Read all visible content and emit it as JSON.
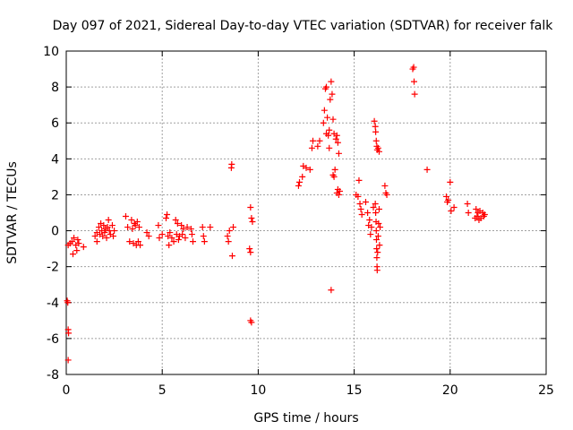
{
  "chart_data": {
    "type": "scatter",
    "title": "Day 097 of 2021, Sidereal Day-to-day VTEC variation (SDTVAR) for receiver falk",
    "xlabel": "GPS time / hours",
    "ylabel": "SDTVAR / TECUs",
    "xlim": [
      0,
      25
    ],
    "ylim": [
      -8,
      10
    ],
    "xticks": [
      0,
      5,
      10,
      15,
      20,
      25
    ],
    "yticks": [
      -8,
      -6,
      -4,
      -2,
      0,
      2,
      4,
      6,
      8,
      10
    ],
    "grid": true,
    "marker": "+",
    "series": [
      {
        "name": "SDTVAR",
        "color": "#ff0000",
        "points": [
          [
            0.05,
            -3.9
          ],
          [
            0.08,
            -4.0
          ],
          [
            0.1,
            -5.5
          ],
          [
            0.12,
            -5.7
          ],
          [
            0.1,
            -7.2
          ],
          [
            0.1,
            -0.8
          ],
          [
            0.2,
            -0.7
          ],
          [
            0.3,
            -0.6
          ],
          [
            0.35,
            -1.3
          ],
          [
            0.4,
            -0.4
          ],
          [
            0.5,
            -0.8
          ],
          [
            0.55,
            -1.1
          ],
          [
            0.6,
            -0.5
          ],
          [
            0.65,
            -0.7
          ],
          [
            0.9,
            -0.9
          ],
          [
            1.5,
            -0.3
          ],
          [
            1.6,
            -0.1
          ],
          [
            1.6,
            -0.6
          ],
          [
            1.7,
            0.2
          ],
          [
            1.75,
            -0.2
          ],
          [
            1.8,
            0.4
          ],
          [
            1.85,
            0.0
          ],
          [
            1.9,
            -0.3
          ],
          [
            1.95,
            0.3
          ],
          [
            2.0,
            -0.1
          ],
          [
            2.05,
            0.1
          ],
          [
            2.1,
            -0.4
          ],
          [
            2.15,
            0.2
          ],
          [
            2.2,
            0.6
          ],
          [
            2.25,
            0.0
          ],
          [
            2.3,
            -0.2
          ],
          [
            2.4,
            0.3
          ],
          [
            2.45,
            -0.3
          ],
          [
            2.5,
            0.0
          ],
          [
            3.1,
            0.8
          ],
          [
            3.2,
            0.2
          ],
          [
            3.3,
            -0.6
          ],
          [
            3.4,
            0.6
          ],
          [
            3.45,
            0.1
          ],
          [
            3.5,
            -0.7
          ],
          [
            3.55,
            0.4
          ],
          [
            3.6,
            0.3
          ],
          [
            3.65,
            -0.8
          ],
          [
            3.7,
            0.5
          ],
          [
            3.75,
            -0.6
          ],
          [
            3.8,
            0.2
          ],
          [
            3.85,
            -0.8
          ],
          [
            4.2,
            -0.1
          ],
          [
            4.3,
            -0.3
          ],
          [
            4.8,
            0.3
          ],
          [
            4.85,
            -0.4
          ],
          [
            5.0,
            -0.2
          ],
          [
            5.2,
            0.7
          ],
          [
            5.25,
            0.9
          ],
          [
            5.3,
            -0.3
          ],
          [
            5.35,
            -0.8
          ],
          [
            5.4,
            -0.1
          ],
          [
            5.5,
            -0.4
          ],
          [
            5.6,
            -0.6
          ],
          [
            5.7,
            0.6
          ],
          [
            5.75,
            -0.2
          ],
          [
            5.8,
            0.4
          ],
          [
            5.85,
            -0.5
          ],
          [
            5.9,
            -0.3
          ],
          [
            6.0,
            0.3
          ],
          [
            6.05,
            -0.2
          ],
          [
            6.1,
            0.1
          ],
          [
            6.2,
            -0.4
          ],
          [
            6.3,
            0.2
          ],
          [
            6.5,
            0.1
          ],
          [
            6.55,
            -0.2
          ],
          [
            6.6,
            -0.6
          ],
          [
            7.1,
            0.2
          ],
          [
            7.15,
            -0.3
          ],
          [
            7.2,
            -0.6
          ],
          [
            7.5,
            0.2
          ],
          [
            8.4,
            -0.3
          ],
          [
            8.45,
            -0.6
          ],
          [
            8.5,
            0.0
          ],
          [
            8.6,
            3.5
          ],
          [
            8.62,
            3.7
          ],
          [
            8.65,
            -1.4
          ],
          [
            8.7,
            0.2
          ],
          [
            9.6,
            1.3
          ],
          [
            9.65,
            0.7
          ],
          [
            9.7,
            0.5
          ],
          [
            9.6,
            -5.0
          ],
          [
            9.65,
            -5.1
          ],
          [
            9.55,
            -1.0
          ],
          [
            9.6,
            -1.2
          ],
          [
            12.1,
            2.5
          ],
          [
            12.15,
            2.7
          ],
          [
            12.3,
            3.0
          ],
          [
            12.35,
            3.6
          ],
          [
            12.5,
            3.5
          ],
          [
            12.7,
            3.4
          ],
          [
            12.8,
            4.6
          ],
          [
            12.85,
            5.0
          ],
          [
            13.1,
            4.7
          ],
          [
            13.2,
            5.0
          ],
          [
            13.4,
            6.0
          ],
          [
            13.45,
            6.7
          ],
          [
            13.5,
            7.9
          ],
          [
            13.55,
            8.0
          ],
          [
            13.6,
            6.3
          ],
          [
            13.65,
            5.3
          ],
          [
            13.7,
            5.6
          ],
          [
            13.75,
            7.3
          ],
          [
            13.8,
            8.3
          ],
          [
            13.85,
            7.6
          ],
          [
            13.9,
            6.2
          ],
          [
            13.95,
            5.4
          ],
          [
            13.55,
            5.4
          ],
          [
            13.7,
            4.6
          ],
          [
            13.8,
            -3.3
          ],
          [
            13.9,
            3.1
          ],
          [
            13.95,
            3.0
          ],
          [
            14.0,
            3.4
          ],
          [
            14.05,
            5.1
          ],
          [
            14.1,
            5.3
          ],
          [
            14.15,
            4.9
          ],
          [
            14.2,
            4.3
          ],
          [
            14.1,
            2.1
          ],
          [
            14.15,
            2.3
          ],
          [
            14.2,
            2.0
          ],
          [
            14.25,
            2.2
          ],
          [
            15.1,
            2.0
          ],
          [
            15.2,
            1.9
          ],
          [
            15.25,
            2.8
          ],
          [
            15.3,
            1.5
          ],
          [
            15.35,
            1.2
          ],
          [
            15.4,
            0.9
          ],
          [
            15.6,
            1.6
          ],
          [
            15.7,
            1.0
          ],
          [
            15.75,
            0.3
          ],
          [
            15.8,
            0.6
          ],
          [
            15.85,
            -0.2
          ],
          [
            15.9,
            0.2
          ],
          [
            16.0,
            1.3
          ],
          [
            16.05,
            6.1
          ],
          [
            16.1,
            5.8
          ],
          [
            16.12,
            5.5
          ],
          [
            16.15,
            5.0
          ],
          [
            16.18,
            4.7
          ],
          [
            16.2,
            4.5
          ],
          [
            16.25,
            4.6
          ],
          [
            16.3,
            4.4
          ],
          [
            16.1,
            1.5
          ],
          [
            16.12,
            1.0
          ],
          [
            16.14,
            0.5
          ],
          [
            16.15,
            0.0
          ],
          [
            16.16,
            -0.5
          ],
          [
            16.17,
            -1.0
          ],
          [
            16.18,
            -1.5
          ],
          [
            16.19,
            -2.0
          ],
          [
            16.2,
            -2.2
          ],
          [
            16.22,
            -1.2
          ],
          [
            16.25,
            -0.3
          ],
          [
            16.27,
            0.4
          ],
          [
            16.3,
            1.2
          ],
          [
            16.32,
            -0.8
          ],
          [
            16.35,
            0.2
          ],
          [
            16.6,
            2.5
          ],
          [
            16.65,
            2.1
          ],
          [
            16.7,
            2.0
          ],
          [
            18.05,
            9.0
          ],
          [
            18.1,
            9.1
          ],
          [
            18.12,
            8.3
          ],
          [
            18.15,
            7.6
          ],
          [
            18.8,
            3.4
          ],
          [
            19.8,
            1.9
          ],
          [
            19.85,
            1.6
          ],
          [
            19.9,
            1.7
          ],
          [
            20.0,
            2.7
          ],
          [
            20.05,
            1.1
          ],
          [
            20.2,
            1.3
          ],
          [
            20.9,
            1.5
          ],
          [
            20.95,
            1.0
          ],
          [
            21.3,
            0.7
          ],
          [
            21.35,
            1.2
          ],
          [
            21.4,
            0.8
          ],
          [
            21.45,
            1.0
          ],
          [
            21.5,
            0.6
          ],
          [
            21.55,
            1.1
          ],
          [
            21.6,
            0.7
          ],
          [
            21.7,
            1.0
          ],
          [
            21.75,
            0.8
          ],
          [
            21.8,
            0.9
          ]
        ]
      }
    ]
  }
}
